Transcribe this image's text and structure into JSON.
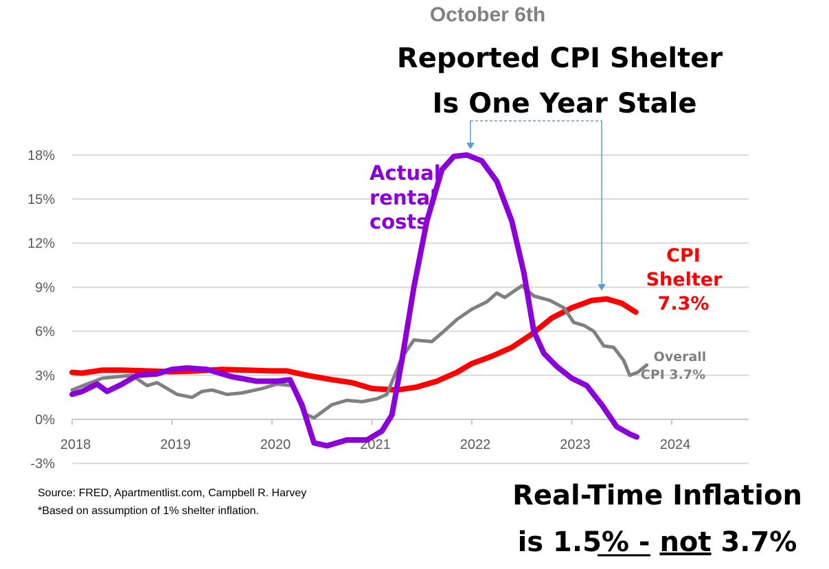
{
  "header": {
    "date": "October 6th",
    "title_line1": "Reported CPI Shelter",
    "title_line2": "Is One Year Stale"
  },
  "annotations": {
    "rental": [
      "Actual",
      "rental",
      "costs"
    ],
    "shelter": [
      "CPI",
      "Shelter",
      "7.3%"
    ],
    "overall": [
      "Overall",
      "CPI 3.7%"
    ]
  },
  "footer": {
    "source": "Source: FRED, Apartmentlist.com, Campbell R. Harvey",
    "note": "*Based on assumption of 1% shelter inflation.",
    "conclusion_line1": "Real-Time Inflation",
    "conclusion_pre": "is 1.5% - ",
    "conclusion_not": "not",
    "conclusion_post": " 3.7%"
  },
  "chart_data": {
    "type": "line",
    "title": "Reported CPI Shelter Is One Year Stale",
    "xlabel": "",
    "ylabel": "",
    "xlim": [
      2018,
      2024.9
    ],
    "ylim": [
      -3,
      18
    ],
    "x_ticks": [
      2018,
      2019,
      2020,
      2021,
      2022,
      2023,
      2024
    ],
    "x_tick_labels": [
      "2018",
      "2019",
      "2020",
      "2021",
      "2022",
      "2023",
      "2024"
    ],
    "y_ticks": [
      18,
      15,
      12,
      9,
      6,
      3,
      0,
      -3
    ],
    "y_tick_labels": [
      "18%",
      "15%",
      "12%",
      "9%",
      "6%",
      "3%",
      "0%",
      "-3%"
    ],
    "grid": true,
    "series": [
      {
        "name": "CPI Shelter",
        "color": "#ff0000",
        "x": [
          2018.0,
          2018.1,
          2018.3,
          2018.5,
          2018.75,
          2019.0,
          2019.25,
          2019.5,
          2019.75,
          2020.0,
          2020.15,
          2020.35,
          2020.6,
          2020.8,
          2021.0,
          2021.25,
          2021.45,
          2021.65,
          2021.85,
          2022.0,
          2022.2,
          2022.4,
          2022.6,
          2022.8,
          2023.0,
          2023.2,
          2023.35,
          2023.5,
          2023.64
        ],
        "values": [
          3.2,
          3.15,
          3.35,
          3.35,
          3.3,
          3.25,
          3.3,
          3.4,
          3.35,
          3.3,
          3.3,
          3.0,
          2.7,
          2.5,
          2.1,
          2.0,
          2.2,
          2.6,
          3.2,
          3.8,
          4.3,
          4.9,
          5.8,
          6.9,
          7.6,
          8.1,
          8.2,
          7.9,
          7.3
        ]
      },
      {
        "name": "Overall CPI",
        "color": "#808080",
        "x": [
          2018.0,
          2018.15,
          2018.3,
          2018.45,
          2018.6,
          2018.75,
          2018.85,
          2019.05,
          2019.2,
          2019.3,
          2019.4,
          2019.55,
          2019.7,
          2019.9,
          2020.05,
          2020.2,
          2020.32,
          2020.42,
          2020.6,
          2020.75,
          2020.9,
          2021.05,
          2021.15,
          2021.3,
          2021.42,
          2021.6,
          2021.72,
          2021.85,
          2022.0,
          2022.15,
          2022.25,
          2022.33,
          2022.5,
          2022.62,
          2022.78,
          2022.92,
          2023.02,
          2023.12,
          2023.22,
          2023.32,
          2023.42,
          2023.52,
          2023.58,
          2023.66,
          2023.75
        ],
        "values": [
          2.0,
          2.4,
          2.8,
          2.9,
          3.0,
          2.3,
          2.5,
          1.7,
          1.5,
          1.9,
          2.0,
          1.7,
          1.8,
          2.1,
          2.4,
          2.3,
          0.4,
          0.1,
          1.0,
          1.3,
          1.2,
          1.4,
          1.7,
          4.2,
          5.4,
          5.3,
          6.0,
          6.8,
          7.5,
          8.0,
          8.6,
          8.3,
          9.1,
          8.4,
          8.1,
          7.6,
          6.6,
          6.4,
          6.0,
          5.0,
          4.9,
          4.0,
          3.0,
          3.2,
          3.7
        ]
      },
      {
        "name": "Actual rental costs",
        "color": "#8b00d8",
        "x": [
          2018.0,
          2018.1,
          2018.25,
          2018.35,
          2018.5,
          2018.65,
          2018.85,
          2019.0,
          2019.15,
          2019.35,
          2019.6,
          2019.85,
          2020.05,
          2020.18,
          2020.3,
          2020.42,
          2020.55,
          2020.75,
          2020.95,
          2021.1,
          2021.2,
          2021.3,
          2021.42,
          2021.55,
          2021.7,
          2021.82,
          2021.95,
          2022.1,
          2022.25,
          2022.4,
          2022.52,
          2022.62,
          2022.72,
          2022.85,
          2023.0,
          2023.15,
          2023.3,
          2023.45,
          2023.58,
          2023.65
        ],
        "values": [
          1.7,
          1.9,
          2.4,
          1.9,
          2.4,
          3.0,
          3.1,
          3.4,
          3.5,
          3.4,
          2.9,
          2.6,
          2.6,
          2.7,
          1.0,
          -1.6,
          -1.8,
          -1.4,
          -1.4,
          -0.8,
          0.3,
          4.0,
          9.0,
          13.5,
          17.0,
          17.9,
          18.0,
          17.6,
          16.2,
          13.5,
          10.0,
          6.0,
          4.5,
          3.6,
          2.8,
          2.3,
          1.0,
          -0.5,
          -1.0,
          -1.2
        ]
      }
    ]
  }
}
